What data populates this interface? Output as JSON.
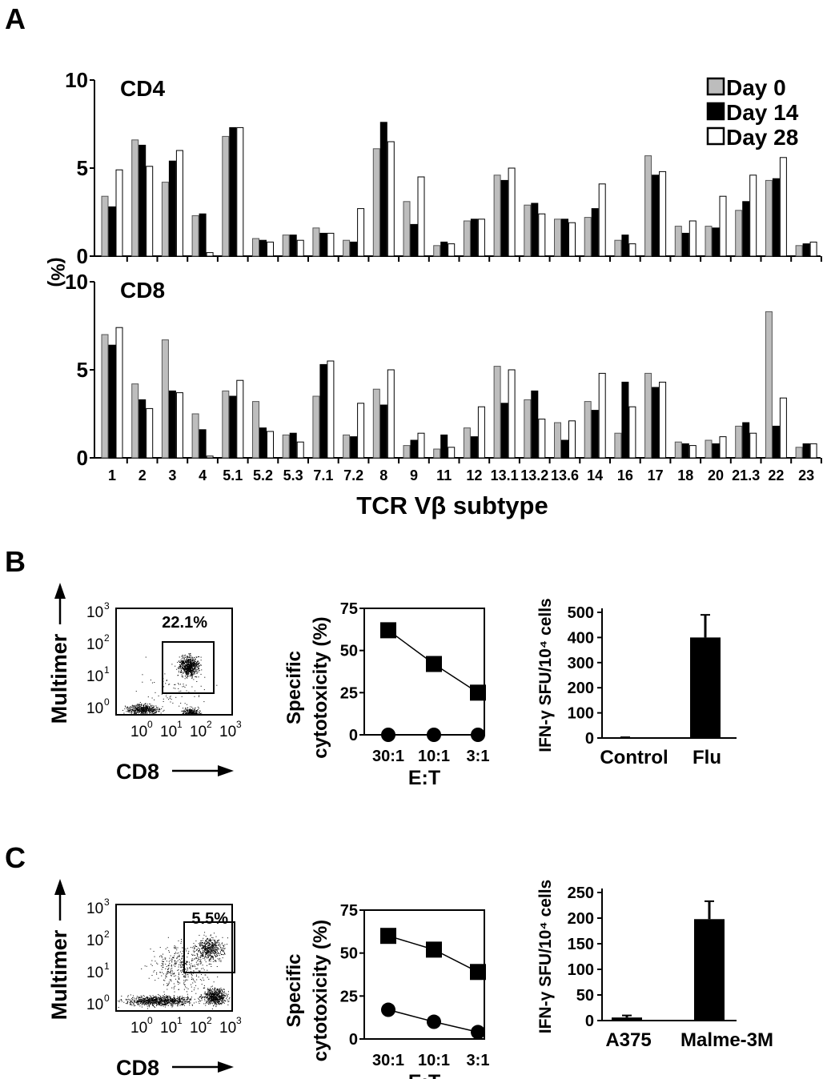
{
  "panel_labels": {
    "a": "A",
    "b": "B",
    "c": "C"
  },
  "chart_data": [
    {
      "type": "bar",
      "id": "A-CD4",
      "title": "CD4",
      "ylabel": "(%)",
      "xlabel": "TCR Vβ subtype",
      "ylim": [
        0,
        10
      ],
      "yticks": [
        "0",
        "5",
        "10"
      ],
      "categories": [
        "1",
        "2",
        "3",
        "4",
        "5.1",
        "5.2",
        "5.3",
        "7.1",
        "7.2",
        "8",
        "9",
        "11",
        "12",
        "13.1",
        "13.2",
        "13.6",
        "14",
        "16",
        "17",
        "18",
        "20",
        "21.3",
        "22",
        "23"
      ],
      "legend": "top-right",
      "series": [
        {
          "name": "Day 0",
          "color": "#bdbdbd",
          "values": [
            3.4,
            6.6,
            4.2,
            2.3,
            6.8,
            1.0,
            1.2,
            1.6,
            0.9,
            6.1,
            3.1,
            0.6,
            2.0,
            4.6,
            2.9,
            2.1,
            2.2,
            0.9,
            5.7,
            1.7,
            1.7,
            2.6,
            4.3,
            0.6
          ]
        },
        {
          "name": "Day 14",
          "color": "#000000",
          "values": [
            2.8,
            6.3,
            5.4,
            2.4,
            7.3,
            0.9,
            1.2,
            1.3,
            0.8,
            7.6,
            1.8,
            0.8,
            2.1,
            4.3,
            3.0,
            2.1,
            2.7,
            1.2,
            4.6,
            1.3,
            1.6,
            3.1,
            4.4,
            0.7
          ]
        },
        {
          "name": "Day 28",
          "color": "#ffffff",
          "values": [
            4.9,
            5.1,
            6.0,
            0.2,
            7.3,
            0.8,
            0.9,
            1.3,
            2.7,
            6.5,
            4.5,
            0.7,
            2.1,
            5.0,
            2.4,
            1.9,
            4.1,
            0.7,
            4.8,
            2.0,
            3.4,
            4.6,
            5.6,
            0.8
          ]
        }
      ]
    },
    {
      "type": "bar",
      "id": "A-CD8",
      "title": "CD8",
      "ylim": [
        0,
        10
      ],
      "yticks": [
        "0",
        "5",
        "10"
      ],
      "series": [
        {
          "name": "Day 0",
          "values": [
            7.0,
            4.2,
            6.7,
            2.5,
            3.8,
            3.2,
            1.3,
            3.5,
            1.3,
            3.9,
            0.7,
            0.5,
            1.7,
            5.2,
            3.3,
            2.0,
            3.2,
            1.4,
            4.8,
            0.9,
            1.0,
            1.8,
            8.3,
            0.6
          ]
        },
        {
          "name": "Day 14",
          "values": [
            6.4,
            3.3,
            3.8,
            1.6,
            3.5,
            1.7,
            1.4,
            5.3,
            1.2,
            3.0,
            1.0,
            1.3,
            1.2,
            3.1,
            3.8,
            1.0,
            2.7,
            4.3,
            4.0,
            0.8,
            0.8,
            2.0,
            1.8,
            0.8
          ]
        },
        {
          "name": "Day 28",
          "values": [
            7.4,
            2.8,
            3.7,
            0.1,
            4.4,
            1.5,
            0.9,
            5.5,
            3.1,
            5.0,
            1.4,
            0.6,
            2.9,
            5.0,
            2.2,
            2.1,
            4.8,
            2.9,
            4.3,
            0.7,
            1.2,
            1.4,
            3.4,
            0.8
          ]
        }
      ]
    },
    {
      "type": "scatter",
      "id": "B-flow",
      "xlabel": "CD8",
      "ylabel": "Multimer",
      "gate_percent": "22.1%",
      "ticks": [
        "10",
        "10",
        "10",
        "10"
      ],
      "tick_exps": [
        "0",
        "1",
        "2",
        "3"
      ]
    },
    {
      "type": "line",
      "id": "B-cyto",
      "ylabel": [
        "Specific",
        "cytotoxicity (%)"
      ],
      "xlabel": "E:T",
      "categories": [
        "30:1",
        "10:1",
        "3:1"
      ],
      "ylim": [
        0,
        75
      ],
      "yticks": [
        "0",
        "25",
        "50",
        "75"
      ],
      "series": [
        {
          "marker": "square",
          "values": [
            62,
            42,
            25
          ]
        },
        {
          "marker": "circle",
          "values": [
            0,
            0,
            0
          ]
        }
      ]
    },
    {
      "type": "bar",
      "id": "B-elispot",
      "ylabel": "IFN-γ SFU/10⁴ cells",
      "categories": [
        "Control",
        "Flu"
      ],
      "values": [
        3,
        400
      ],
      "errors": [
        3,
        490
      ],
      "ylim": [
        0,
        500
      ],
      "yticks": [
        "0",
        "100",
        "200",
        "300",
        "400",
        "500"
      ]
    },
    {
      "type": "scatter",
      "id": "C-flow",
      "xlabel": "CD8",
      "ylabel": "Multimer",
      "gate_percent": "5.5%",
      "ticks": [
        "10",
        "10",
        "10",
        "10"
      ],
      "tick_exps": [
        "0",
        "1",
        "2",
        "3"
      ]
    },
    {
      "type": "line",
      "id": "C-cyto",
      "ylabel": [
        "Specific",
        "cytotoxicity (%)"
      ],
      "xlabel": "E:T",
      "categories": [
        "30:1",
        "10:1",
        "3:1"
      ],
      "ylim": [
        0,
        75
      ],
      "yticks": [
        "0",
        "25",
        "50",
        "75"
      ],
      "series": [
        {
          "marker": "square",
          "values": [
            60,
            52,
            39
          ]
        },
        {
          "marker": "circle",
          "values": [
            17,
            10,
            4
          ]
        }
      ]
    },
    {
      "type": "bar",
      "id": "C-elispot",
      "ylabel": "IFN-γ SFU/10⁴ cells",
      "categories": [
        "A375",
        "Malme-3M"
      ],
      "values": [
        6,
        198
      ],
      "errors": [
        10,
        233
      ],
      "ylim": [
        0,
        250
      ],
      "yticks": [
        "0",
        "50",
        "100",
        "150",
        "200",
        "250"
      ]
    }
  ]
}
